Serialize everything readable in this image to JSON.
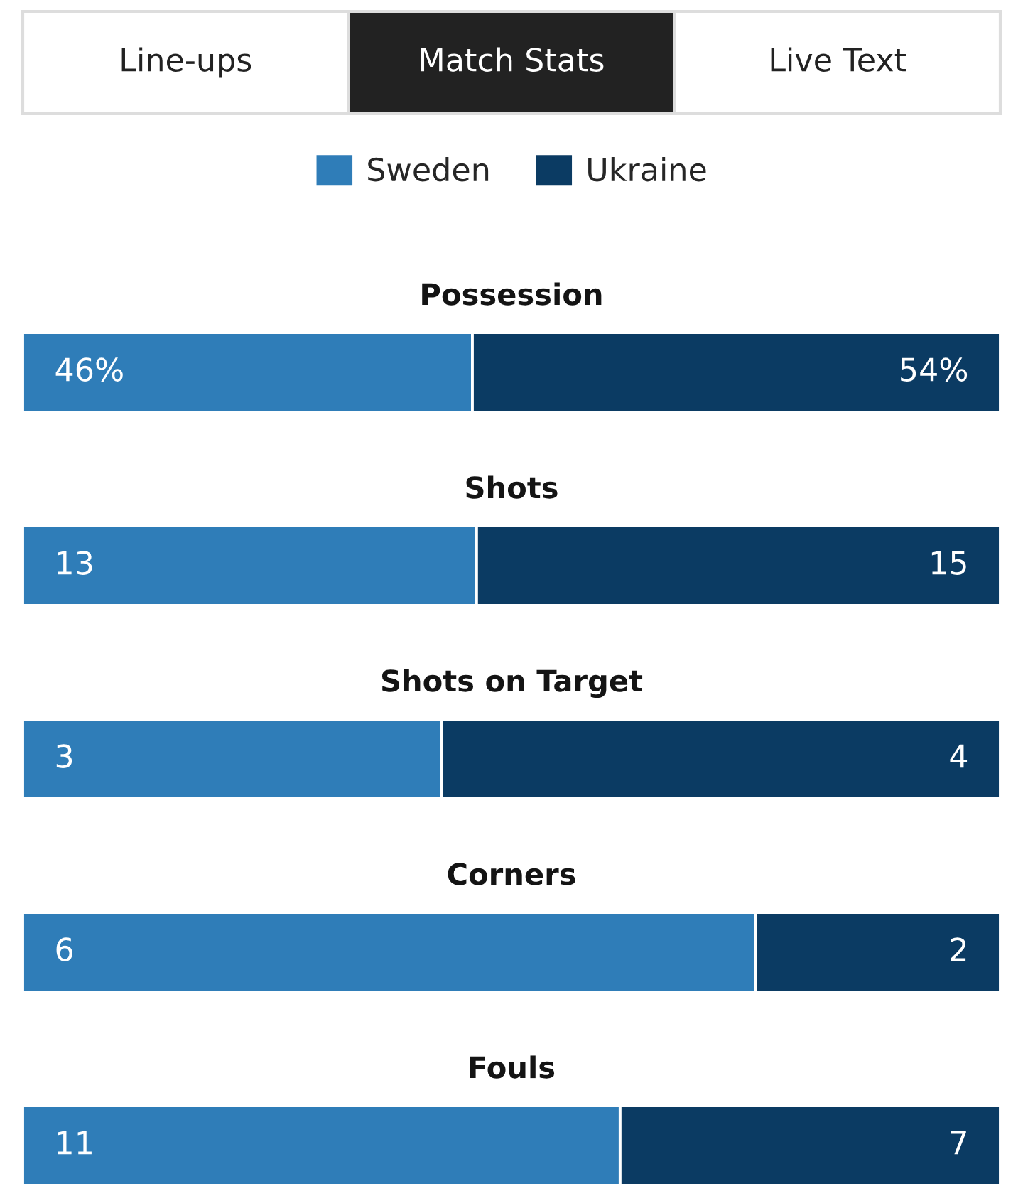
{
  "chart_data": [
    {
      "type": "bar",
      "title": "Possession",
      "orientation": "horizontal",
      "stacked": true,
      "categories": [
        null
      ],
      "data_labels": true,
      "tick_labels": false,
      "legend": "top",
      "annotations": [
        "Line-ups",
        "Match Stats",
        "Live Text"
      ],
      "series": [
        {
          "name": "Sweden",
          "color": "#2f7db8",
          "values": [
            46
          ],
          "value_labels": [
            "46%"
          ]
        },
        {
          "name": "Ukraine",
          "color": "#0b3b63",
          "values": [
            54
          ],
          "value_labels": [
            "54%"
          ]
        }
      ]
    },
    {
      "type": "bar",
      "title": "Shots",
      "orientation": "horizontal",
      "stacked": true,
      "categories": [
        null
      ],
      "data_labels": true,
      "tick_labels": false,
      "series": [
        {
          "color": "#2f7db8",
          "values": [
            13
          ]
        },
        {
          "color": "#0b3b63",
          "values": [
            15
          ]
        }
      ]
    },
    {
      "type": "bar",
      "title": "Shots on Target",
      "orientation": "horizontal",
      "stacked": true,
      "categories": [
        null
      ],
      "data_labels": true,
      "tick_labels": false,
      "series": [
        {
          "color": "#2f7db8",
          "values": [
            3
          ]
        },
        {
          "color": "#0b3b63",
          "values": [
            4
          ]
        }
      ]
    },
    {
      "type": "bar",
      "title": "Corners",
      "orientation": "horizontal",
      "stacked": true,
      "categories": [
        null
      ],
      "data_labels": true,
      "tick_labels": false,
      "series": [
        {
          "color": "#2f7db8",
          "values": [
            6
          ]
        },
        {
          "color": "#0b3b63",
          "values": [
            2
          ]
        }
      ]
    },
    {
      "type": "bar",
      "title": "Fouls",
      "orientation": "horizontal",
      "stacked": true,
      "categories": [
        null
      ],
      "data_labels": true,
      "tick_labels": false,
      "series": [
        {
          "color": "#2f7db8",
          "values": [
            11
          ]
        },
        {
          "color": "#0b3b63",
          "values": [
            7
          ]
        }
      ]
    }
  ]
}
